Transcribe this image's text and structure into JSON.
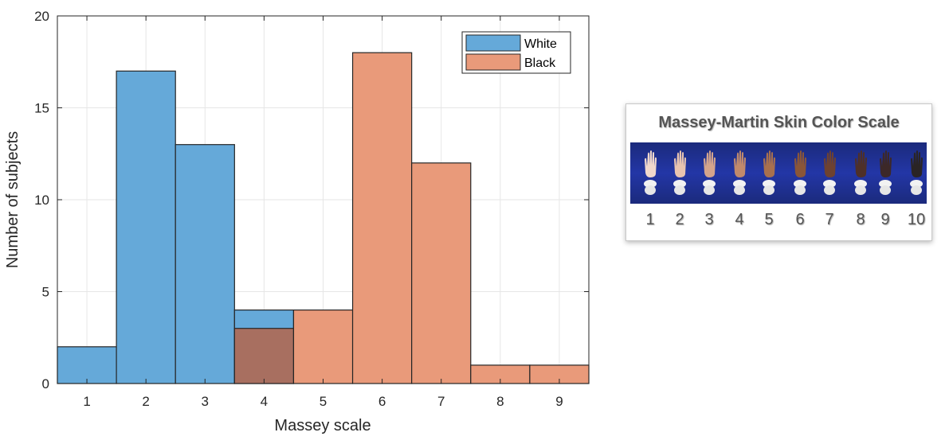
{
  "chart_data": {
    "type": "bar",
    "xlabel": "Massey scale",
    "ylabel": "Number of subjects",
    "categories": [
      "1",
      "2",
      "3",
      "4",
      "5",
      "6",
      "7",
      "8",
      "9"
    ],
    "xlim": [
      0.5,
      9.5
    ],
    "ylim": [
      0,
      20
    ],
    "yticks": [
      "0",
      "5",
      "10",
      "15",
      "20"
    ],
    "grid": true,
    "legend_position": "top-right",
    "series": [
      {
        "name": "White",
        "color": "#65a9d9",
        "values": [
          2,
          17,
          13,
          4,
          0,
          0,
          0,
          0,
          0
        ]
      },
      {
        "name": "Black",
        "color": "#e99a7a",
        "values": [
          0,
          0,
          0,
          3,
          4,
          18,
          12,
          1,
          1
        ]
      }
    ],
    "overlap_color": "#a86f60"
  },
  "scale_panel": {
    "title": "Massey-Martin Skin Color Scale",
    "numbers": [
      "1",
      "2",
      "3",
      "4",
      "5",
      "6",
      "7",
      "8",
      "9",
      "10"
    ],
    "hand_colors": [
      "#f0d8cc",
      "#e8c4b0",
      "#d4a48c",
      "#c08a6c",
      "#a8704e",
      "#8a5638",
      "#6e4230",
      "#4e3028",
      "#3c2828",
      "#2a2424"
    ],
    "strip_color": "#2336a6"
  }
}
